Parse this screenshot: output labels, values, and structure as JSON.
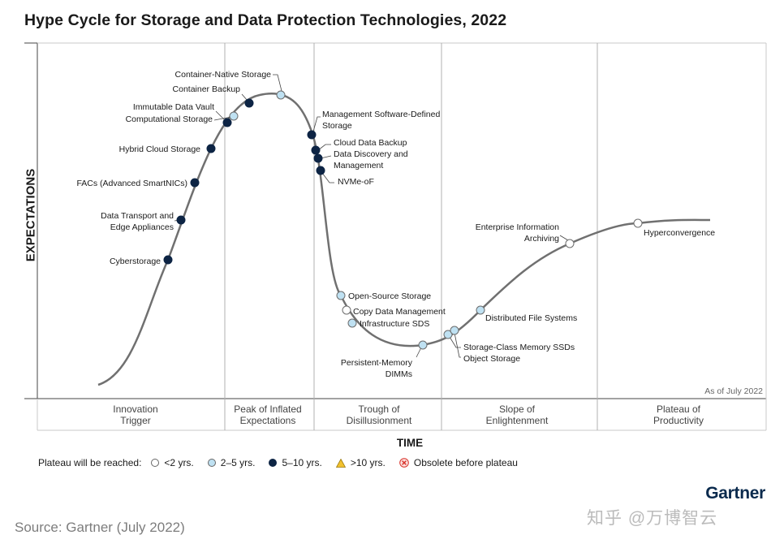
{
  "title": "Hype Cycle for Storage and Data Protection Technologies, 2022",
  "y_axis_label": "EXPECTATIONS",
  "x_axis_label": "TIME",
  "as_of": "As of July 2022",
  "phases": [
    {
      "line1": "Innovation",
      "line2": "Trigger"
    },
    {
      "line1": "Peak of Inflated",
      "line2": "Expectations"
    },
    {
      "line1": "Trough of",
      "line2": "Disillusionment"
    },
    {
      "line1": "Slope of",
      "line2": "Enlightenment"
    },
    {
      "line1": "Plateau of",
      "line2": "Productivity"
    }
  ],
  "colors": {
    "under_2": "#ffffff",
    "two_to_5": "#bfe1f2",
    "five_to_10": "#0d2444",
    "over_10": "#f2c12e",
    "obsolete": "#d9332b",
    "curve": "#707070"
  },
  "legend": {
    "label": "Plateau will be reached:",
    "items": [
      {
        "key": "under_2",
        "text": "<2 yrs.",
        "shape": "circle"
      },
      {
        "key": "two_to_5",
        "text": "2–5 yrs.",
        "shape": "circle"
      },
      {
        "key": "five_to_10",
        "text": "5–10 yrs.",
        "shape": "circle"
      },
      {
        "key": "over_10",
        "text": ">10 yrs.",
        "shape": "triangle"
      },
      {
        "key": "obsolete",
        "text": "Obsolete before plateau",
        "shape": "x-circle"
      }
    ]
  },
  "technologies": [
    {
      "lines": [
        "Cyberstorage"
      ],
      "plateau": "five_to_10"
    },
    {
      "lines": [
        "Data Transport and",
        "Edge Appliances"
      ],
      "plateau": "five_to_10"
    },
    {
      "lines": [
        "FACs (Advanced SmartNICs)"
      ],
      "plateau": "five_to_10"
    },
    {
      "lines": [
        "Hybrid Cloud Storage"
      ],
      "plateau": "five_to_10"
    },
    {
      "lines": [
        "Immutable Data Vault"
      ],
      "plateau": "five_to_10"
    },
    {
      "lines": [
        "Computational Storage"
      ],
      "plateau": "two_to_5"
    },
    {
      "lines": [
        "Container Backup"
      ],
      "plateau": "five_to_10"
    },
    {
      "lines": [
        "Container-Native Storage"
      ],
      "plateau": "two_to_5"
    },
    {
      "lines": [
        "Management Software-Defined",
        "Storage"
      ],
      "plateau": "five_to_10"
    },
    {
      "lines": [
        "Cloud Data Backup"
      ],
      "plateau": "five_to_10"
    },
    {
      "lines": [
        "Data Discovery and",
        "Management"
      ],
      "plateau": "five_to_10"
    },
    {
      "lines": [
        "NVMe-oF"
      ],
      "plateau": "five_to_10"
    },
    {
      "lines": [
        "Open-Source Storage"
      ],
      "plateau": "two_to_5"
    },
    {
      "lines": [
        "Copy Data Management"
      ],
      "plateau": "under_2"
    },
    {
      "lines": [
        "Infrastructure SDS"
      ],
      "plateau": "two_to_5"
    },
    {
      "lines": [
        "Persistent-Memory",
        "DIMMs"
      ],
      "plateau": "two_to_5"
    },
    {
      "lines": [
        "Storage-Class Memory SSDs"
      ],
      "plateau": "two_to_5"
    },
    {
      "lines": [
        "Object Storage"
      ],
      "plateau": "two_to_5"
    },
    {
      "lines": [
        "Distributed File Systems"
      ],
      "plateau": "two_to_5"
    },
    {
      "lines": [
        "Enterprise Information",
        "Archiving"
      ],
      "plateau": "under_2"
    },
    {
      "lines": [
        "Hyperconvergence"
      ],
      "plateau": "under_2"
    }
  ],
  "brand": "Gartner",
  "source": "Source: Gartner (July 2022)",
  "watermark": "知乎 @万博智云"
}
